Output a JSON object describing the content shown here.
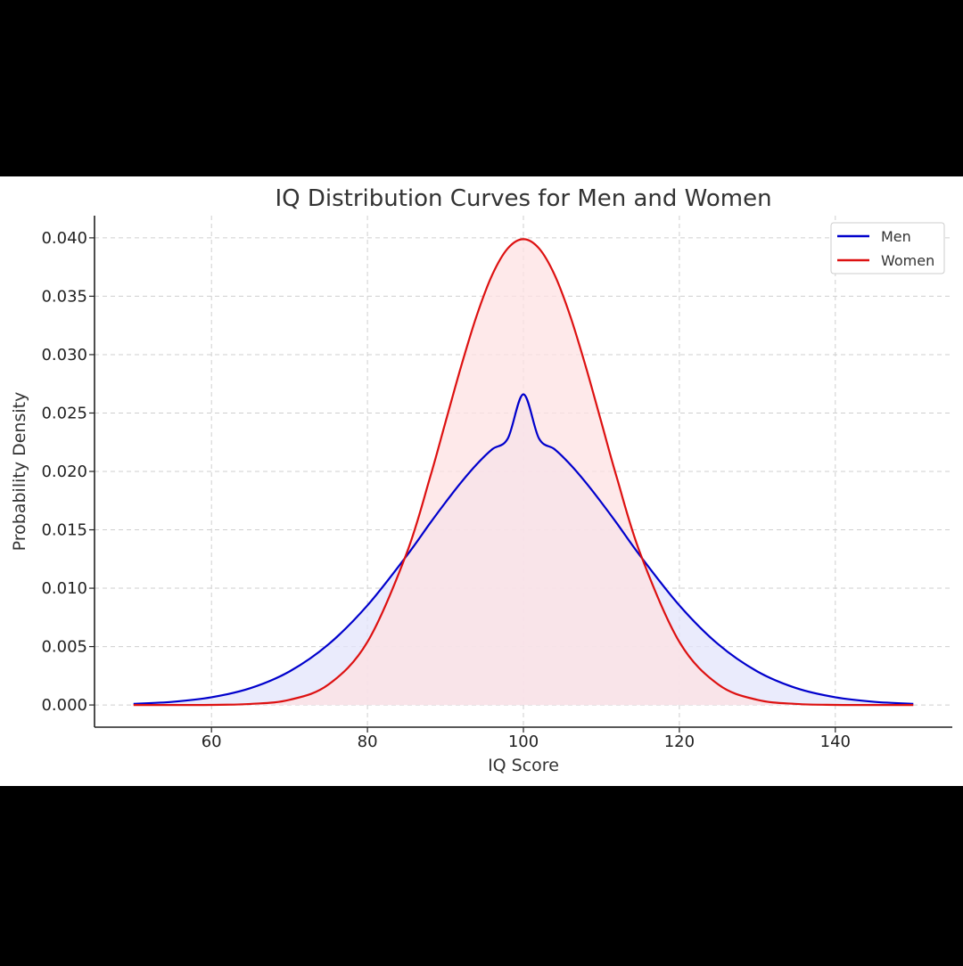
{
  "chart_data": {
    "type": "line",
    "title": "IQ Distribution Curves for Men and Women",
    "xlabel": "IQ Score",
    "ylabel": "Probability Density",
    "xlim": [
      45,
      155
    ],
    "ylim": [
      -0.0019,
      0.0419
    ],
    "x_ticks": [
      60,
      80,
      100,
      120,
      140
    ],
    "x_tick_labels": [
      "60",
      "80",
      "100",
      "120",
      "140"
    ],
    "y_ticks": [
      0.0,
      0.005,
      0.01,
      0.015,
      0.02,
      0.025,
      0.03,
      0.035,
      0.04
    ],
    "y_tick_labels": [
      "0.000",
      "0.005",
      "0.010",
      "0.015",
      "0.020",
      "0.025",
      "0.030",
      "0.035",
      "0.040"
    ],
    "grid": true,
    "legend_position": "top-right",
    "x": [
      50,
      55,
      60,
      65,
      70,
      75,
      80,
      85,
      88,
      90,
      92,
      94,
      96,
      98,
      100,
      102,
      104,
      106,
      108,
      110,
      112,
      115,
      120,
      125,
      130,
      135,
      140,
      145,
      150
    ],
    "series": [
      {
        "name": "Men",
        "color": "#0000cc",
        "fill": "#e3e4fb",
        "values": [
          0.0001,
          0.00027,
          0.00066,
          0.00144,
          0.00287,
          0.00519,
          0.00853,
          0.01275,
          0.01554,
          0.01734,
          0.01905,
          0.0206,
          0.0219,
          0.02282,
          0.0266,
          0.02282,
          0.0219,
          0.0206,
          0.01905,
          0.01734,
          0.01554,
          0.01275,
          0.00853,
          0.00519,
          0.00287,
          0.00144,
          0.00066,
          0.00027,
          0.0001
        ]
      },
      {
        "name": "Women",
        "color": "#dd1111",
        "fill": "#fde2e3",
        "values": [
          0.0,
          0.0,
          1e-05,
          9e-05,
          0.00044,
          0.00175,
          0.0054,
          0.01295,
          0.01942,
          0.0242,
          0.02897,
          0.03332,
          0.03683,
          0.0391,
          0.03989,
          0.0391,
          0.03683,
          0.03332,
          0.02897,
          0.0242,
          0.01942,
          0.01295,
          0.0054,
          0.00175,
          0.00044,
          9e-05,
          1e-05,
          0.0,
          0.0
        ]
      }
    ]
  }
}
